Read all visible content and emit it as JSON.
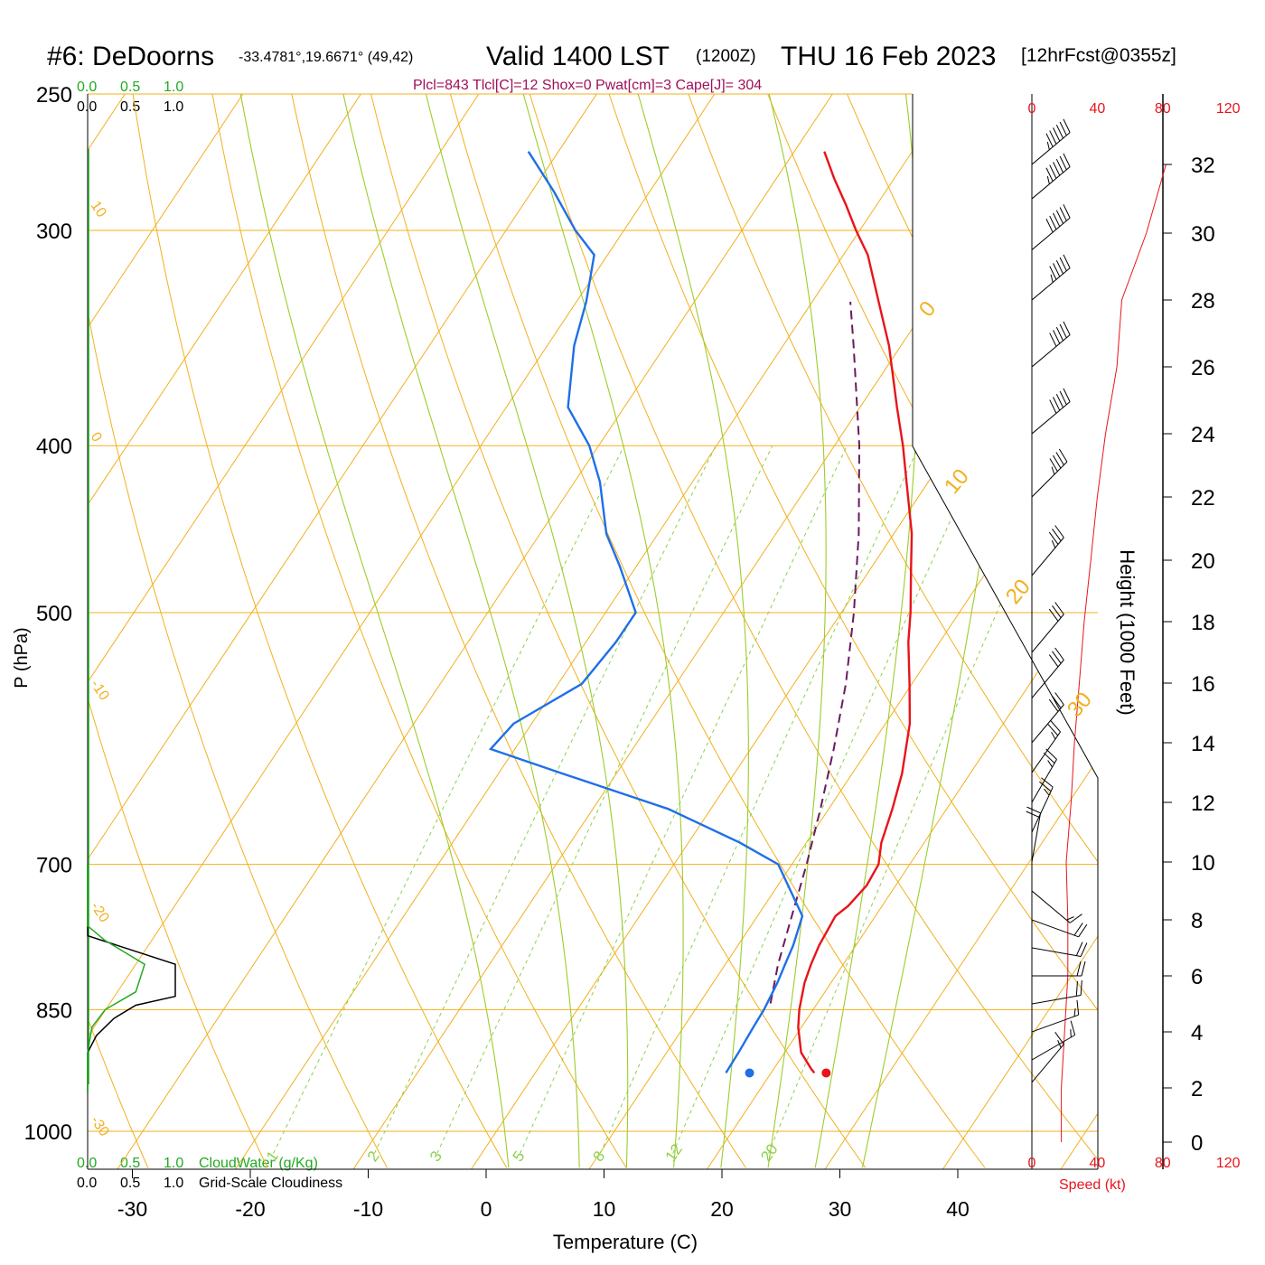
{
  "header": {
    "station": "#6: DeDoorns",
    "coords": "-33.4781°,19.6671° (49,42)",
    "valid_prefix": "Valid 1400 LST",
    "valid_z": "(1200Z)",
    "valid_date": "THU 16 Feb 2023",
    "forecast": "[12hrFcst@0355z]"
  },
  "indices_line": "Plcl=843 Tlcl[C]=12 Shox=0 Pwat[cm]=3 Cape[J]= 304",
  "cloud_scale": {
    "green_ticks": [
      "0.0",
      "0.5",
      "1.0"
    ],
    "black_ticks": [
      "0.0",
      "0.5",
      "1.0"
    ],
    "green_label": "CloudWater (g/Kg)",
    "black_label": "Grid-Scale Cloudiness"
  },
  "axes": {
    "xlabel": "Temperature (C)",
    "ylabel": "P (hPa)",
    "right_label": "Height (1000 Feet)",
    "speed_label": "Speed (kt)"
  },
  "colors": {
    "temperature": "#e8141b",
    "dewpoint": "#1f6fe8",
    "parcel": "#6b1a5e",
    "isobar_isotherm": "#f2b01e",
    "moist_adiabat": "#9ccc2c",
    "mixing_ratio": "#8bd14a",
    "cloudwater": "#22aa22",
    "speed": "#e8141b",
    "indices": "#a0105a"
  },
  "chart_data": {
    "type": "line",
    "title": "#6: DeDoorns Valid 1400 LST (1200Z) THU 16 Feb 2023",
    "xlabel": "Temperature (C)",
    "ylabel": "P (hPa)",
    "log_pressure_axis": true,
    "pressure_range": [
      1030,
      250
    ],
    "temperature_ticks": [
      "-30",
      "-20",
      "-10",
      "0",
      "10",
      "20",
      "30",
      "40"
    ],
    "pressure_ticks": [
      "250",
      "300",
      "400",
      "500",
      "700",
      "850",
      "1000"
    ],
    "skew_isotherm_labels": [
      "10",
      "0",
      "-10",
      "-20",
      "-30"
    ],
    "skew_isotherm_labels_right": [
      "0",
      "10",
      "20",
      "30"
    ],
    "mixing_ratio_labels": [
      "1",
      "2",
      "3",
      "5",
      "8",
      "12",
      "20"
    ],
    "height_ticks_kft": [
      "0",
      "2",
      "4",
      "6",
      "8",
      "10",
      "12",
      "14",
      "16",
      "18",
      "20",
      "22",
      "24",
      "26",
      "28",
      "30",
      "32"
    ],
    "speed_ticks_kt": [
      "0",
      "40",
      "80",
      "120"
    ],
    "series": [
      {
        "name": "Temperature",
        "points_p_t": [
          [
            925,
            24.5
          ],
          [
            920,
            24.0
          ],
          [
            900,
            22.2
          ],
          [
            870,
            20.5
          ],
          [
            850,
            19.6
          ],
          [
            820,
            18.5
          ],
          [
            800,
            18.0
          ],
          [
            780,
            17.6
          ],
          [
            750,
            17.3
          ],
          [
            740,
            17.8
          ],
          [
            720,
            18.2
          ],
          [
            700,
            18.0
          ],
          [
            680,
            17.0
          ],
          [
            650,
            16.0
          ],
          [
            620,
            14.8
          ],
          [
            580,
            12.6
          ],
          [
            550,
            10.3
          ],
          [
            520,
            7.8
          ],
          [
            500,
            6.3
          ],
          [
            470,
            3.7
          ],
          [
            450,
            1.9
          ],
          [
            420,
            -1.5
          ],
          [
            400,
            -3.9
          ],
          [
            380,
            -6.6
          ],
          [
            350,
            -10.8
          ],
          [
            330,
            -14.2
          ],
          [
            310,
            -17.8
          ],
          [
            300,
            -20.2
          ],
          [
            290,
            -22.5
          ],
          [
            280,
            -25.0
          ],
          [
            270,
            -27.4
          ]
        ]
      },
      {
        "name": "Dewpoint",
        "points_p_t": [
          [
            925,
            17.0
          ],
          [
            900,
            16.9
          ],
          [
            870,
            16.7
          ],
          [
            850,
            16.6
          ],
          [
            820,
            16.2
          ],
          [
            800,
            15.8
          ],
          [
            780,
            15.4
          ],
          [
            750,
            14.5
          ],
          [
            700,
            9.5
          ],
          [
            680,
            5.0
          ],
          [
            650,
            -3.0
          ],
          [
            620,
            -14.0
          ],
          [
            600,
            -21.5
          ],
          [
            580,
            -21.0
          ],
          [
            550,
            -17.5
          ],
          [
            520,
            -17.0
          ],
          [
            500,
            -17.0
          ],
          [
            470,
            -21.0
          ],
          [
            450,
            -24.0
          ],
          [
            420,
            -27.5
          ],
          [
            400,
            -30.5
          ],
          [
            380,
            -34.5
          ],
          [
            350,
            -37.5
          ],
          [
            330,
            -39.0
          ],
          [
            310,
            -41.0
          ],
          [
            300,
            -44.0
          ],
          [
            285,
            -48.0
          ],
          [
            270,
            -52.5
          ]
        ]
      },
      {
        "name": "Parcel",
        "points_p_t": [
          [
            843,
            16.8
          ],
          [
            800,
            15.2
          ],
          [
            750,
            13.6
          ],
          [
            700,
            11.9
          ],
          [
            650,
            9.9
          ],
          [
            600,
            7.6
          ],
          [
            550,
            4.9
          ],
          [
            500,
            1.5
          ],
          [
            450,
            -2.6
          ],
          [
            400,
            -7.6
          ],
          [
            350,
            -13.8
          ],
          [
            330,
            -16.6
          ]
        ]
      }
    ],
    "surface_temperature": 25.5,
    "surface_dewpoint": 19.0,
    "surface_pressure": 925,
    "height_profile_kft": [
      0,
      2,
      4,
      6,
      8,
      10,
      12,
      14,
      16,
      18,
      20,
      22,
      24,
      26,
      28,
      30,
      32
    ],
    "wind_speed_profile_kt": [
      18,
      18,
      20,
      22,
      22,
      21,
      24,
      26,
      29,
      32,
      36,
      40,
      45,
      52,
      55,
      70,
      82
    ],
    "wind_barbs": [
      {
        "height_kft": 2.2,
        "speed_kt": 15,
        "dir_deg": 320
      },
      {
        "height_kft": 3.0,
        "speed_kt": 15,
        "dir_deg": 300
      },
      {
        "height_kft": 4.0,
        "speed_kt": 15,
        "dir_deg": 290
      },
      {
        "height_kft": 5.0,
        "speed_kt": 20,
        "dir_deg": 280
      },
      {
        "height_kft": 6.0,
        "speed_kt": 20,
        "dir_deg": 270
      },
      {
        "height_kft": 7.0,
        "speed_kt": 20,
        "dir_deg": 260
      },
      {
        "height_kft": 8.0,
        "speed_kt": 20,
        "dir_deg": 250
      },
      {
        "height_kft": 9.0,
        "speed_kt": 15,
        "dir_deg": 230
      },
      {
        "height_kft": 10.0,
        "speed_kt": 20,
        "dir_deg": 350
      },
      {
        "height_kft": 11.0,
        "speed_kt": 25,
        "dir_deg": 335
      },
      {
        "height_kft": 12.0,
        "speed_kt": 25,
        "dir_deg": 330
      },
      {
        "height_kft": 13.0,
        "speed_kt": 25,
        "dir_deg": 325
      },
      {
        "height_kft": 14.0,
        "speed_kt": 30,
        "dir_deg": 320
      },
      {
        "height_kft": 15.5,
        "speed_kt": 30,
        "dir_deg": 320
      },
      {
        "height_kft": 17.0,
        "speed_kt": 30,
        "dir_deg": 320
      },
      {
        "height_kft": 19.5,
        "speed_kt": 35,
        "dir_deg": 320
      },
      {
        "height_kft": 22.0,
        "speed_kt": 45,
        "dir_deg": 315
      },
      {
        "height_kft": 24.0,
        "speed_kt": 50,
        "dir_deg": 310
      },
      {
        "height_kft": 26.0,
        "speed_kt": 50,
        "dir_deg": 310
      },
      {
        "height_kft": 28.0,
        "speed_kt": 55,
        "dir_deg": 310
      },
      {
        "height_kft": 29.5,
        "speed_kt": 60,
        "dir_deg": 310
      },
      {
        "height_kft": 31.0,
        "speed_kt": 65,
        "dir_deg": 310
      },
      {
        "height_kft": 32.5,
        "speed_kt": 65,
        "dir_deg": 310
      }
    ],
    "cloud_profile": [
      [
        950,
        0.0
      ],
      [
        900,
        0.0
      ],
      [
        880,
        0.1
      ],
      [
        860,
        0.3
      ],
      [
        845,
        0.55
      ],
      [
        835,
        1.0
      ],
      [
        800,
        1.0
      ],
      [
        770,
        0.0
      ],
      [
        700,
        0.0
      ]
    ],
    "cloudwater_profile": [
      [
        950,
        0.0
      ],
      [
        900,
        0.0
      ],
      [
        870,
        0.05
      ],
      [
        850,
        0.2
      ],
      [
        830,
        0.55
      ],
      [
        800,
        0.65
      ],
      [
        775,
        0.2
      ],
      [
        760,
        0.0
      ],
      [
        700,
        0.0
      ]
    ]
  }
}
